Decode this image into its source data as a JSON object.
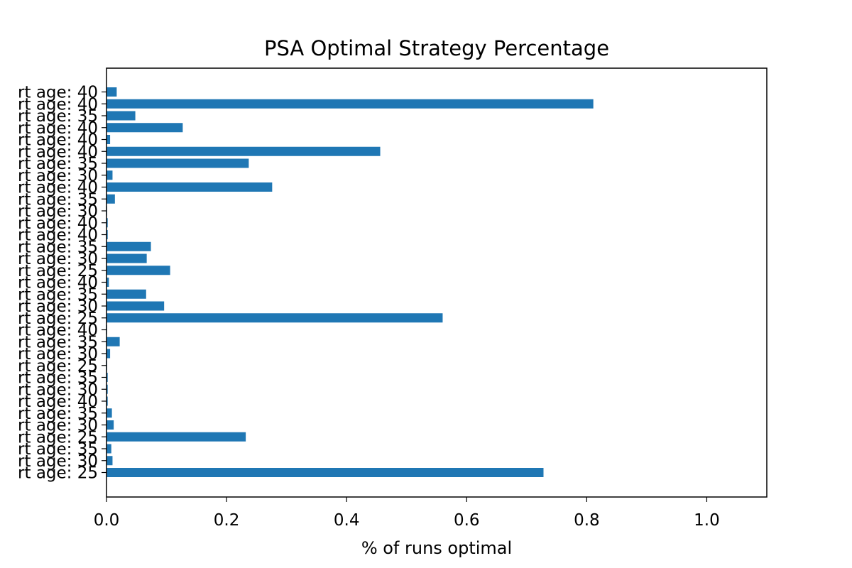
{
  "chart_data": {
    "type": "bar",
    "orientation": "horizontal",
    "title": "PSA Optimal Strategy Percentage",
    "xlabel": "% of runs optimal",
    "ylabel": "",
    "xlim": [
      0,
      1.1
    ],
    "xticks": [
      "0.0",
      "0.2",
      "0.4",
      "0.6",
      "0.8",
      "1.0"
    ],
    "xtick_values": [
      0.0,
      0.2,
      0.4,
      0.6,
      0.8,
      1.0
    ],
    "grid": false,
    "legend": "none",
    "bar_color": "#1f77b4",
    "categories": [
      "rt age: 25",
      "rt age: 30",
      "rt age: 35",
      "rt age: 25",
      "rt age: 30",
      "rt age: 35",
      "rt age: 40",
      "rt age: 30",
      "rt age: 35",
      "rt age: 25",
      "rt age: 30",
      "rt age: 35",
      "rt age: 40",
      "rt age: 25",
      "rt age: 30",
      "rt age: 35",
      "rt age: 40",
      "rt age: 25",
      "rt age: 30",
      "rt age: 35",
      "rt age: 40",
      "rt age: 40",
      "rt age: 30",
      "rt age: 35",
      "rt age: 40",
      "rt age: 30",
      "rt age: 35",
      "rt age: 40",
      "rt age: 40",
      "rt age: 40",
      "rt age: 35",
      "rt age: 40",
      "rt age: 40"
    ],
    "values": [
      0.728,
      0.01,
      0.008,
      0.232,
      0.012,
      0.009,
      0.002,
      0.002,
      0.002,
      0.001,
      0.006,
      0.022,
      0.001,
      0.56,
      0.096,
      0.066,
      0.004,
      0.106,
      0.067,
      0.074,
      0.002,
      0.002,
      0.001,
      0.014,
      0.276,
      0.01,
      0.237,
      0.456,
      0.006,
      0.127,
      0.048,
      0.811,
      0.017
    ]
  }
}
